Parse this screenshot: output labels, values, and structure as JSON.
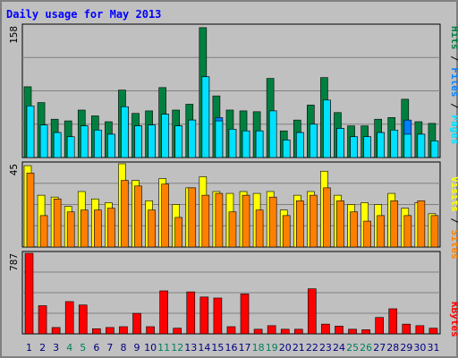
{
  "chart_data": [
    {
      "name": "hits-files-pages",
      "type": "bar",
      "title": "Daily usage for May 2013",
      "categories": [
        "1",
        "2",
        "3",
        "4",
        "5",
        "6",
        "7",
        "8",
        "9",
        "10",
        "11",
        "12",
        "13",
        "14",
        "15",
        "16",
        "17",
        "18",
        "19",
        "20",
        "21",
        "22",
        "23",
        "24",
        "25",
        "26",
        "27",
        "28",
        "29",
        "30",
        "31"
      ],
      "weekend_days": [
        "4",
        "5",
        "11",
        "12",
        "18",
        "19",
        "25",
        "26"
      ],
      "ylim": [
        0,
        158
      ],
      "max_label": "158",
      "legend": {
        "pages": "Pages",
        "files": "Files",
        "hits": "Hits",
        "sep": " / "
      },
      "series": [
        {
          "name": "Hits",
          "color": "#008040",
          "values": [
            85,
            66,
            46,
            44,
            57,
            50,
            43,
            81,
            53,
            56,
            84,
            57,
            64,
            156,
            74,
            57,
            56,
            55,
            95,
            32,
            45,
            63,
            96,
            54,
            38,
            38,
            46,
            48,
            70,
            43,
            41
          ]
        },
        {
          "name": "Files",
          "color": "#0080ff",
          "values": [
            62,
            39,
            30,
            25,
            38,
            33,
            28,
            61,
            38,
            39,
            52,
            38,
            45,
            97,
            48,
            34,
            32,
            32,
            56,
            21,
            30,
            40,
            69,
            35,
            25,
            25,
            30,
            33,
            45,
            28,
            20
          ]
        },
        {
          "name": "Pages",
          "color": "#00e0ff",
          "values": [
            62,
            39,
            30,
            25,
            38,
            33,
            28,
            61,
            38,
            39,
            52,
            38,
            45,
            97,
            44,
            34,
            32,
            32,
            56,
            21,
            30,
            40,
            69,
            35,
            25,
            25,
            30,
            33,
            28,
            28,
            20
          ]
        }
      ]
    },
    {
      "name": "visits-sites",
      "type": "bar",
      "categories": [
        "1",
        "2",
        "3",
        "4",
        "5",
        "6",
        "7",
        "8",
        "9",
        "10",
        "11",
        "12",
        "13",
        "14",
        "15",
        "16",
        "17",
        "18",
        "19",
        "20",
        "21",
        "22",
        "23",
        "24",
        "25",
        "26",
        "27",
        "28",
        "29",
        "30",
        "31"
      ],
      "ylim": [
        0,
        45
      ],
      "max_label": "45",
      "legend": {
        "sites": "Sites",
        "visits": "Visits",
        "sep": " / "
      },
      "series": [
        {
          "name": "Visits",
          "color": "#ffff00",
          "values": [
            44,
            28,
            27,
            22,
            30,
            26,
            24,
            45,
            36,
            25,
            37,
            23,
            32,
            38,
            30,
            29,
            30,
            29,
            30,
            20,
            28,
            30,
            41,
            28,
            23,
            24,
            23,
            29,
            21,
            24,
            18
          ]
        },
        {
          "name": "Sites",
          "color": "#ff8000",
          "values": [
            40,
            17,
            26,
            19,
            20,
            20,
            21,
            36,
            33,
            20,
            34,
            16,
            32,
            28,
            29,
            19,
            28,
            20,
            27,
            17,
            25,
            28,
            32,
            25,
            19,
            14,
            17,
            25,
            17,
            25,
            17
          ]
        }
      ]
    },
    {
      "name": "kbytes",
      "type": "bar",
      "ylim": [
        0,
        787
      ],
      "max_label": "787",
      "categories": [
        "1",
        "2",
        "3",
        "4",
        "5",
        "6",
        "7",
        "8",
        "9",
        "10",
        "11",
        "12",
        "13",
        "14",
        "15",
        "16",
        "17",
        "18",
        "19",
        "20",
        "21",
        "22",
        "23",
        "24",
        "25",
        "26",
        "27",
        "28",
        "29",
        "30",
        "31"
      ],
      "legend": {
        "kbytes": "KBytes"
      },
      "series": [
        {
          "name": "KBytes",
          "color": "#ff0000",
          "values": [
            787,
            275,
            62,
            315,
            282,
            50,
            62,
            70,
            200,
            70,
            420,
            55,
            410,
            360,
            350,
            70,
            390,
            45,
            80,
            45,
            45,
            440,
            95,
            75,
            45,
            40,
            160,
            245,
            95,
            80,
            55
          ]
        }
      ]
    }
  ],
  "colors": {
    "title": "#0000ff",
    "weekday_label": "#000080",
    "weekend_label": "#00805c",
    "grid": "#808080",
    "panel": "#c0c0c0"
  }
}
